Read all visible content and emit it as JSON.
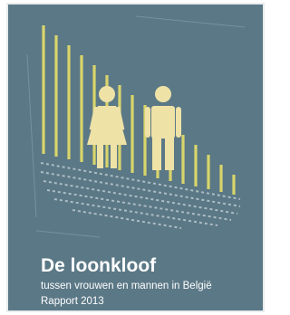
{
  "cover": {
    "title": "De loonkloof",
    "subtitle": "tussen vrouwen en mannen in België",
    "edition": "Rapport 2013"
  }
}
